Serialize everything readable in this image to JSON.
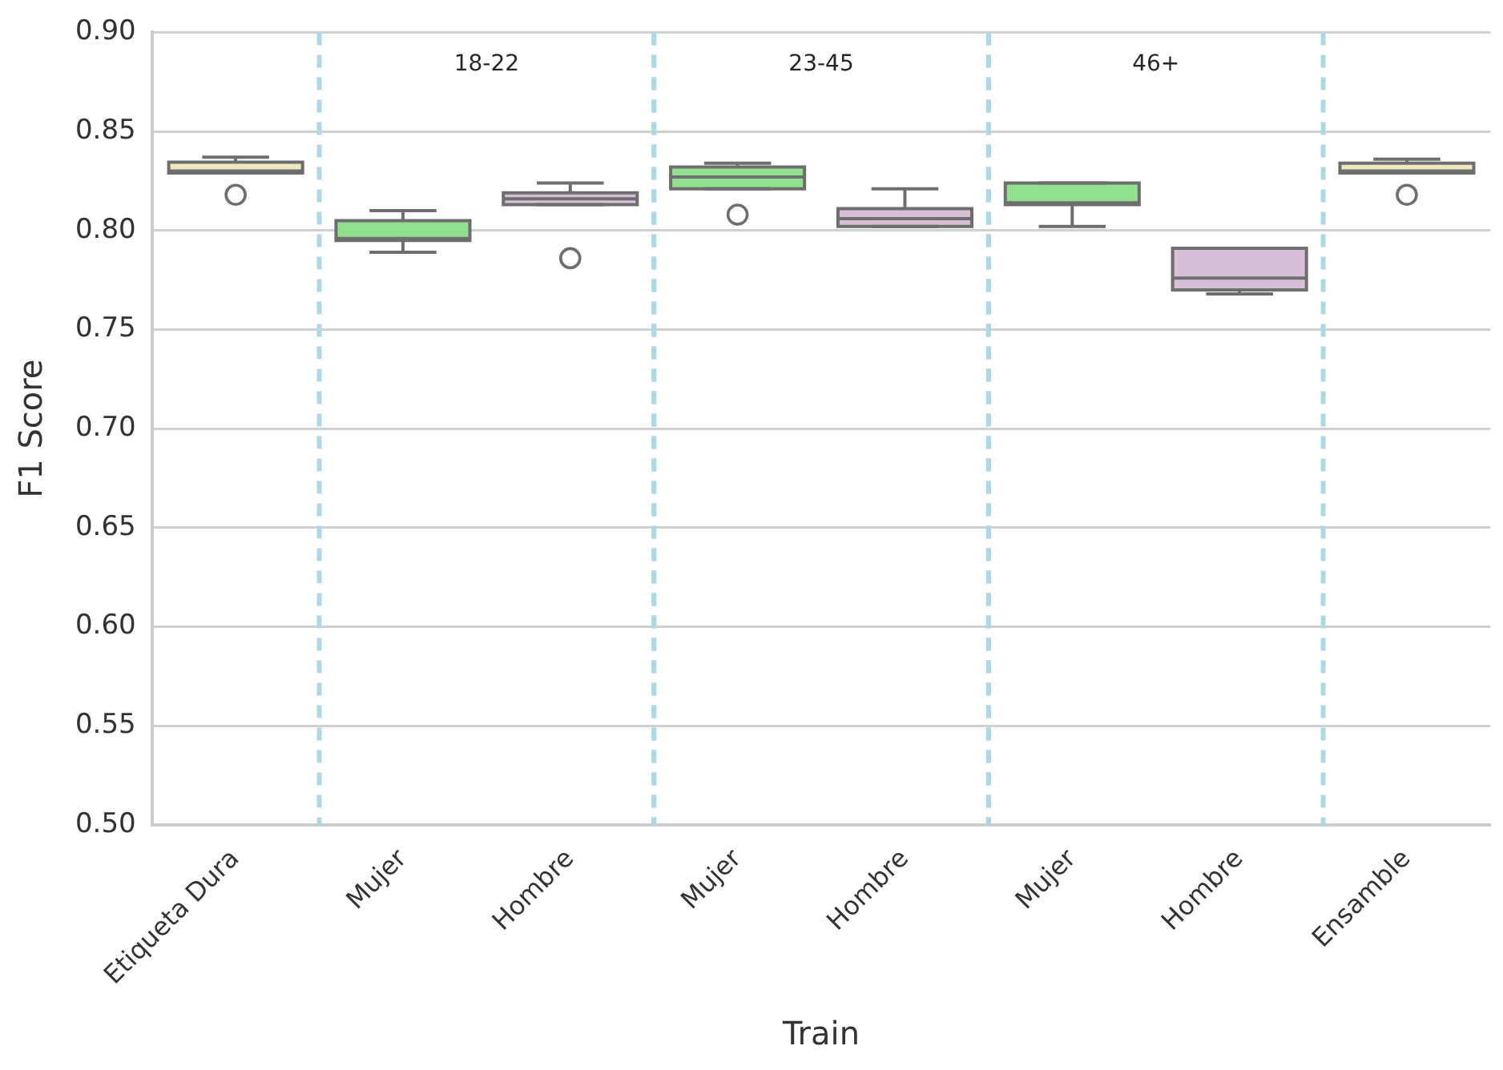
{
  "chart_data": {
    "type": "box",
    "xlabel": "Train",
    "ylabel": "F1 Score",
    "categories": [
      "Etiqueta Dura",
      "Mujer",
      "Hombre",
      "Mujer",
      "Hombre",
      "Mujer",
      "Hombre",
      "Ensamble"
    ],
    "colors": [
      "#eeeac0",
      "#90e090",
      "#d8bfd8",
      "#90e090",
      "#d8bfd8",
      "#90e090",
      "#d8bfd8",
      "#eeeac0"
    ],
    "boxes": [
      {
        "low": 0.829,
        "q1": 0.829,
        "median": 0.83,
        "q3": 0.8345,
        "high": 0.837,
        "outliers": [
          0.818
        ]
      },
      {
        "low": 0.789,
        "q1": 0.795,
        "median": 0.796,
        "q3": 0.805,
        "high": 0.81
      },
      {
        "low": 0.813,
        "q1": 0.813,
        "median": 0.816,
        "q3": 0.819,
        "high": 0.824,
        "outliers": [
          0.786
        ]
      },
      {
        "low": 0.821,
        "q1": 0.821,
        "median": 0.827,
        "q3": 0.832,
        "high": 0.834,
        "outliers": [
          0.808
        ]
      },
      {
        "low": 0.802,
        "q1": 0.802,
        "median": 0.806,
        "q3": 0.811,
        "high": 0.821
      },
      {
        "low": 0.802,
        "q1": 0.813,
        "median": 0.814,
        "q3": 0.824,
        "high": 0.824
      },
      {
        "low": 0.768,
        "q1": 0.77,
        "median": 0.776,
        "q3": 0.791,
        "high": 0.791
      },
      {
        "low": 0.829,
        "q1": 0.829,
        "median": 0.83,
        "q3": 0.834,
        "high": 0.836,
        "outliers": [
          0.818
        ]
      }
    ],
    "ylim": [
      0.5,
      0.9
    ],
    "yticks": [
      {
        "value": 0.5,
        "label": "0.50"
      },
      {
        "value": 0.55,
        "label": "0.55"
      },
      {
        "value": 0.6,
        "label": "0.60"
      },
      {
        "value": 0.65,
        "label": "0.65"
      },
      {
        "value": 0.7,
        "label": "0.70"
      },
      {
        "value": 0.75,
        "label": "0.75"
      },
      {
        "value": 0.8,
        "label": "0.80"
      },
      {
        "value": 0.85,
        "label": "0.85"
      },
      {
        "value": 0.9,
        "label": "0.90"
      }
    ],
    "grid": "y",
    "legend": false,
    "annotations": [
      "18-22",
      "23-45",
      "46+"
    ]
  }
}
